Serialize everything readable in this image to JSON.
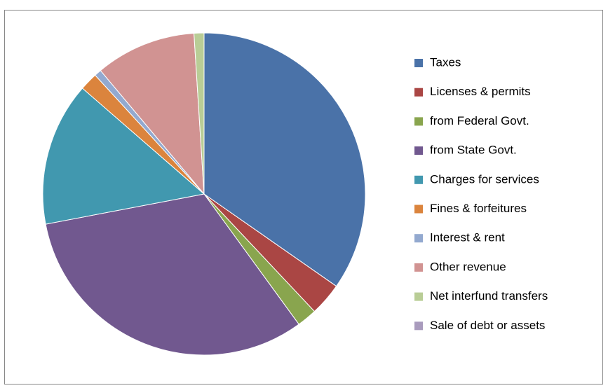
{
  "chart_data": {
    "type": "pie",
    "categories": [
      "Taxes",
      "Licenses & permits",
      "from Federal Govt.",
      "from State Govt.",
      "Charges for services",
      "Fines & forfeitures",
      "Interest & rent",
      "Other revenue",
      "Net interfund transfers",
      "Sale of debt or assets"
    ],
    "values": [
      34.7,
      3.3,
      2,
      32,
      14.4,
      1.8,
      0.7,
      10.1,
      1,
      0
    ],
    "colors": [
      "#4a72a8",
      "#aa4644",
      "#89a54e",
      "#71588f",
      "#4198af",
      "#db843d",
      "#93a9cf",
      "#d19392",
      "#b9cd96",
      "#a99bbd"
    ],
    "legend": "right"
  }
}
